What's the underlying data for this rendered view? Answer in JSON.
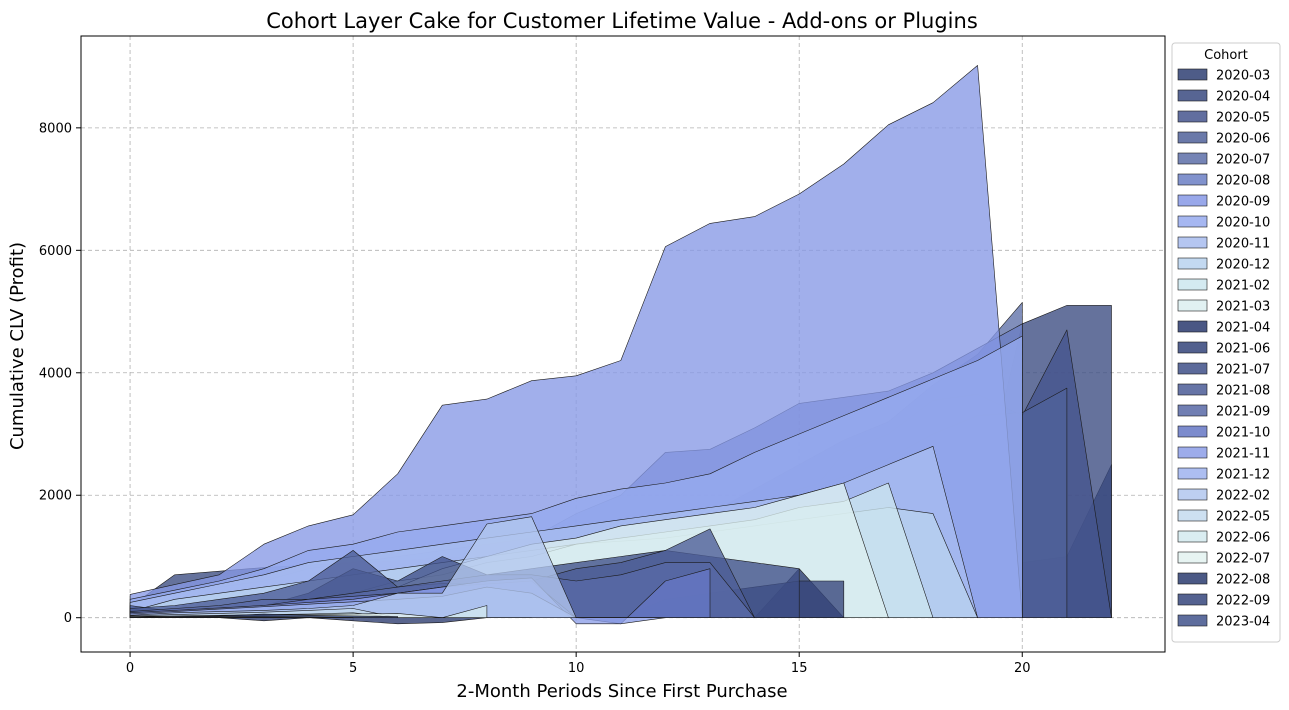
{
  "chart_data": {
    "type": "area",
    "title": "Cohort Layer Cake for Customer Lifetime Value - Add-ons or Plugins",
    "xlabel": "2-Month Periods Since First Purchase",
    "ylabel": "Cumulative CLV (Profit)",
    "xlim": [
      -1.1,
      23.2
    ],
    "ylim": [
      -560,
      9500
    ],
    "xticks": [
      0,
      5,
      10,
      15,
      20
    ],
    "yticks": [
      0,
      2000,
      4000,
      6000,
      8000
    ],
    "grid": true,
    "legend": {
      "title": "Cohort",
      "placement": "right"
    },
    "series": [
      {
        "name": "2020-03",
        "color": "#2f3f73",
        "x": [
          0,
          1,
          2,
          3,
          4,
          5,
          6,
          7,
          8,
          9,
          10,
          11,
          12,
          13,
          14,
          15,
          16,
          17,
          18,
          19,
          20,
          21,
          22
        ],
        "values": [
          50,
          60,
          70,
          80,
          90,
          110,
          140,
          170,
          200,
          230,
          260,
          290,
          320,
          360,
          400,
          450,
          500,
          600,
          700,
          800,
          900,
          1000,
          2500
        ]
      },
      {
        "name": "2020-04",
        "color": "#3a4a80",
        "x": [
          0,
          1,
          2,
          3,
          4,
          5,
          6,
          7,
          8,
          9,
          10,
          11,
          12,
          13,
          14,
          15,
          16,
          17,
          18,
          19,
          20,
          21,
          22
        ],
        "values": [
          180,
          700,
          760,
          820,
          860,
          900,
          930,
          980,
          1000,
          1010,
          1020,
          1050,
          1100,
          1150,
          1200,
          1300,
          1400,
          1500,
          1600,
          1700,
          4800,
          5100,
          5100
        ]
      },
      {
        "name": "2020-05",
        "color": "#45558e",
        "x": [
          0,
          1,
          2,
          3,
          4,
          5,
          6,
          7,
          8,
          9,
          10,
          11,
          12,
          13,
          14,
          15,
          16,
          17,
          18,
          19,
          20,
          21,
          22
        ],
        "values": [
          100,
          300,
          350,
          400,
          450,
          500,
          550,
          600,
          620,
          650,
          700,
          800,
          900,
          1000,
          1200,
          1800,
          2700,
          3000,
          3550,
          3650,
          3300,
          4700,
          0
        ]
      },
      {
        "name": "2020-06",
        "color": "#50619a",
        "x": [
          0,
          1,
          2,
          3,
          4,
          5,
          6,
          7,
          8,
          9,
          10,
          11,
          12,
          13,
          14,
          15,
          16,
          17,
          18,
          19,
          20,
          21
        ],
        "values": [
          120,
          200,
          220,
          240,
          300,
          400,
          500,
          600,
          700,
          900,
          1100,
          1300,
          1500,
          1700,
          1900,
          2100,
          2300,
          2600,
          3000,
          3300,
          3350,
          3750
        ]
      },
      {
        "name": "2020-07",
        "color": "#5d6fa8",
        "x": [
          0,
          1,
          2,
          3,
          4,
          5,
          6,
          7,
          8,
          9,
          10,
          11,
          12,
          13,
          14,
          15,
          16,
          17,
          18,
          19,
          20
        ],
        "values": [
          150,
          250,
          300,
          350,
          400,
          500,
          550,
          600,
          650,
          700,
          900,
          1100,
          1400,
          1700,
          2100,
          2500,
          2900,
          3200,
          3800,
          4300,
          5150
        ]
      },
      {
        "name": "2020-08",
        "color": "#6b7fc4",
        "x": [
          0,
          1,
          2,
          3,
          4,
          5,
          6,
          7,
          8,
          9,
          10,
          11,
          12,
          13,
          14,
          15,
          16,
          17,
          18,
          19,
          20
        ],
        "values": [
          200,
          400,
          500,
          600,
          800,
          900,
          1000,
          1100,
          1200,
          1300,
          1700,
          2000,
          2700,
          2750,
          3100,
          3500,
          3600,
          3700,
          4000,
          4400,
          4800
        ]
      },
      {
        "name": "2020-09",
        "color": "#8799e6",
        "x": [
          0,
          1,
          2,
          3,
          4,
          5,
          6,
          7,
          8,
          9,
          10,
          11,
          12,
          13,
          14,
          15,
          16,
          17,
          18,
          19,
          20
        ],
        "values": [
          380,
          540,
          700,
          1200,
          1500,
          1680,
          2350,
          3470,
          3570,
          3870,
          3950,
          4200,
          6060,
          6440,
          6550,
          6920,
          7410,
          8050,
          8410,
          9020,
          0
        ]
      },
      {
        "name": "2020-10",
        "color": "#96aaee",
        "x": [
          0,
          1,
          2,
          3,
          4,
          5,
          6,
          7,
          8,
          9,
          10,
          11,
          12,
          13,
          14,
          15,
          16,
          17,
          18,
          19,
          20
        ],
        "values": [
          300,
          450,
          600,
          800,
          1100,
          1200,
          1400,
          1500,
          1600,
          1700,
          1950,
          2100,
          2200,
          2350,
          2700,
          3000,
          3300,
          3600,
          3900,
          4200,
          4600
        ]
      },
      {
        "name": "2020-11",
        "color": "#a8bcef",
        "x": [
          0,
          1,
          2,
          3,
          4,
          5,
          6,
          7,
          8,
          9,
          10,
          11,
          12,
          13,
          14,
          15,
          16,
          17,
          18,
          19
        ],
        "values": [
          250,
          400,
          550,
          700,
          900,
          1000,
          1100,
          1200,
          1300,
          1400,
          1500,
          1600,
          1700,
          1800,
          1900,
          2000,
          2200,
          2500,
          2800,
          0
        ]
      },
      {
        "name": "2020-12",
        "color": "#b9d2ee",
        "x": [
          0,
          1,
          2,
          3,
          4,
          5,
          6,
          7,
          8,
          9,
          10,
          11,
          12,
          13,
          14,
          15,
          16,
          17,
          18,
          19
        ],
        "values": [
          100,
          300,
          400,
          500,
          600,
          700,
          800,
          900,
          1000,
          1100,
          1200,
          1250,
          1300,
          1400,
          1500,
          1600,
          1700,
          1800,
          1700,
          0
        ]
      },
      {
        "name": "2021-02",
        "color": "#cce6ee",
        "x": [
          0,
          1,
          2,
          3,
          4,
          5,
          6,
          7,
          8,
          9,
          10,
          11,
          12,
          13,
          14,
          15,
          16,
          17,
          18
        ],
        "values": [
          50,
          100,
          150,
          200,
          300,
          400,
          600,
          700,
          900,
          1000,
          1200,
          1300,
          1400,
          1500,
          1600,
          1800,
          1900,
          2200,
          0
        ]
      },
      {
        "name": "2021-03",
        "color": "#dceff0",
        "x": [
          0,
          1,
          2,
          3,
          4,
          5,
          6,
          7,
          8,
          9,
          10,
          11,
          12,
          13,
          14,
          15,
          16,
          17
        ],
        "values": [
          40,
          80,
          120,
          160,
          200,
          300,
          500,
          800,
          1000,
          1200,
          1300,
          1500,
          1600,
          1700,
          1800,
          2000,
          2200,
          0
        ]
      },
      {
        "name": "2021-04",
        "color": "#2a3a6e",
        "x": [
          0,
          1,
          2,
          3,
          4,
          5,
          6,
          7,
          8,
          9,
          10,
          11,
          12,
          13,
          14,
          15,
          16
        ],
        "values": [
          0,
          0,
          0,
          -50,
          0,
          -50,
          -100,
          -80,
          0,
          0,
          0,
          0,
          50,
          50,
          0,
          800,
          0
        ]
      },
      {
        "name": "2021-06",
        "color": "#34447a",
        "x": [
          0,
          1,
          2,
          3,
          4,
          5,
          6,
          7,
          8,
          9,
          10,
          11,
          12,
          13,
          14,
          15,
          16
        ],
        "values": [
          100,
          100,
          0,
          200,
          200,
          0,
          0,
          0,
          0,
          0,
          0,
          0,
          300,
          400,
          500,
          600,
          600
        ]
      },
      {
        "name": "2021-07",
        "color": "#3f5088",
        "x": [
          0,
          1,
          2,
          3,
          4,
          5,
          6,
          7,
          8,
          9,
          10,
          11,
          12,
          13,
          14,
          15
        ],
        "values": [
          200,
          100,
          150,
          200,
          400,
          800,
          600,
          1000,
          700,
          800,
          900,
          1000,
          1100,
          1000,
          900,
          800
        ]
      },
      {
        "name": "2021-08",
        "color": "#4b5c96",
        "x": [
          0,
          1,
          2,
          3,
          4,
          5,
          6,
          7,
          8,
          9,
          10,
          11,
          12,
          13,
          14
        ],
        "values": [
          150,
          200,
          300,
          400,
          600,
          1100,
          500,
          560,
          550,
          600,
          800,
          900,
          1100,
          1450,
          0
        ]
      },
      {
        "name": "2021-09",
        "color": "#5869a6",
        "x": [
          0,
          1,
          2,
          3,
          4,
          5,
          6,
          7,
          8,
          9,
          10,
          11,
          12,
          13,
          14
        ],
        "values": [
          100,
          150,
          200,
          300,
          300,
          400,
          500,
          600,
          700,
          700,
          600,
          700,
          900,
          900,
          0
        ]
      },
      {
        "name": "2021-10",
        "color": "#6577c4",
        "x": [
          0,
          1,
          2,
          3,
          4,
          5,
          6,
          7,
          8,
          9,
          10,
          11,
          12,
          13
        ],
        "values": [
          50,
          100,
          150,
          200,
          300,
          350,
          400,
          500,
          550,
          600,
          0,
          -100,
          600,
          800
        ]
      },
      {
        "name": "2021-11",
        "color": "#8c9ee8",
        "x": [
          0,
          1,
          2,
          3,
          4,
          5,
          6,
          7,
          8,
          9,
          10,
          11,
          12,
          13
        ],
        "values": [
          80,
          120,
          160,
          200,
          250,
          300,
          400,
          500,
          600,
          650,
          -100,
          -100,
          0,
          0
        ]
      },
      {
        "name": "2021-12",
        "color": "#9fb3ee",
        "x": [
          0,
          1,
          2,
          3,
          4,
          5,
          6,
          7,
          8,
          9,
          10,
          11,
          12
        ],
        "values": [
          60,
          100,
          140,
          180,
          220,
          260,
          300,
          350,
          500,
          400,
          0,
          0,
          0
        ]
      },
      {
        "name": "2022-02",
        "color": "#b2c7ee",
        "x": [
          0,
          1,
          2,
          3,
          4,
          5,
          6,
          7,
          8,
          9,
          10,
          11
        ],
        "values": [
          40,
          80,
          100,
          120,
          150,
          200,
          400,
          400,
          1530,
          1650,
          0,
          0
        ]
      },
      {
        "name": "2022-05",
        "color": "#c4dbee",
        "x": [
          0,
          1,
          2,
          3,
          4,
          5,
          6,
          7,
          8,
          9
        ],
        "values": [
          30,
          50,
          70,
          90,
          120,
          150,
          0,
          0,
          0,
          0
        ]
      },
      {
        "name": "2022-06",
        "color": "#d4eaef",
        "x": [
          0,
          1,
          2,
          3,
          4,
          5,
          6,
          7,
          8
        ],
        "values": [
          20,
          30,
          40,
          50,
          60,
          80,
          0,
          0,
          200
        ]
      },
      {
        "name": "2022-07",
        "color": "#e3f2f0",
        "x": [
          0,
          1,
          2,
          3,
          4,
          5,
          6,
          7
        ],
        "values": [
          10,
          20,
          30,
          40,
          50,
          60,
          70,
          0
        ]
      },
      {
        "name": "2022-08",
        "color": "#2c3c70",
        "x": [
          0,
          1,
          2,
          3,
          4,
          5,
          6
        ],
        "values": [
          10,
          20,
          30,
          60,
          40,
          30,
          20
        ]
      },
      {
        "name": "2022-09",
        "color": "#36467c",
        "x": [
          0,
          1,
          2,
          3,
          4,
          5
        ],
        "values": [
          5,
          10,
          15,
          20,
          10,
          5
        ]
      },
      {
        "name": "2023-04",
        "color": "#42538c",
        "x": [
          0,
          1,
          2,
          3,
          4
        ],
        "values": [
          2,
          4,
          6,
          8,
          4
        ]
      }
    ]
  }
}
